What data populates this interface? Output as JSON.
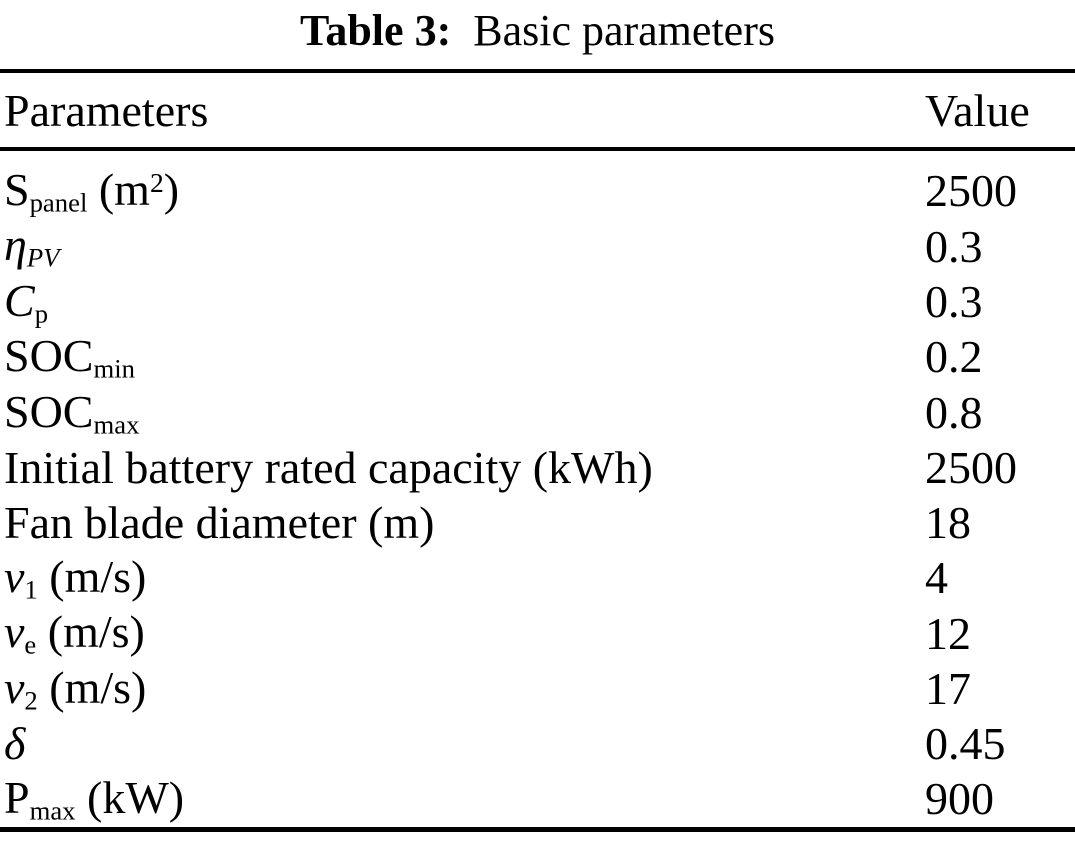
{
  "caption": {
    "label": "Table 3:",
    "text": "Basic parameters"
  },
  "header": {
    "parameters": "Parameters",
    "value": "Value"
  },
  "rows": [
    {
      "name": "S_panel (m^2)",
      "segments": [
        {
          "t": "S"
        },
        {
          "t": "panel",
          "s": "sub"
        },
        {
          "t": " (m"
        },
        {
          "t": "2",
          "s": "sup"
        },
        {
          "t": ")"
        }
      ],
      "value": "2500"
    },
    {
      "name": "eta_PV",
      "segments": [
        {
          "t": "η",
          "s": "it"
        },
        {
          "t": "PV",
          "s": "subit"
        }
      ],
      "value": "0.3"
    },
    {
      "name": "C_p",
      "segments": [
        {
          "t": "C",
          "s": "it"
        },
        {
          "t": "p",
          "s": "sub"
        }
      ],
      "value": "0.3"
    },
    {
      "name": "SOC_min",
      "segments": [
        {
          "t": "SOC"
        },
        {
          "t": "min",
          "s": "sub"
        }
      ],
      "value": "0.2"
    },
    {
      "name": "SOC_max",
      "segments": [
        {
          "t": "SOC"
        },
        {
          "t": "max",
          "s": "sub"
        }
      ],
      "value": "0.8"
    },
    {
      "name": "Initial battery rated capacity (kWh)",
      "segments": [
        {
          "t": "Initial battery rated capacity (kWh)"
        }
      ],
      "value": "2500"
    },
    {
      "name": "Fan blade diameter (m)",
      "segments": [
        {
          "t": "Fan blade diameter (m)"
        }
      ],
      "value": "18"
    },
    {
      "name": "v_1 (m/s)",
      "segments": [
        {
          "t": "v",
          "s": "it"
        },
        {
          "t": "1",
          "s": "sub"
        },
        {
          "t": " (m/s)"
        }
      ],
      "value": "4"
    },
    {
      "name": "v_e (m/s)",
      "segments": [
        {
          "t": "v",
          "s": "it"
        },
        {
          "t": "e",
          "s": "sub"
        },
        {
          "t": " (m/s)"
        }
      ],
      "value": "12"
    },
    {
      "name": "v_2 (m/s)",
      "segments": [
        {
          "t": "v",
          "s": "it"
        },
        {
          "t": "2",
          "s": "sub"
        },
        {
          "t": " (m/s)"
        }
      ],
      "value": "17"
    },
    {
      "name": "delta",
      "segments": [
        {
          "t": "δ",
          "s": "it"
        }
      ],
      "value": "0.45"
    },
    {
      "name": "P_max (kW)",
      "segments": [
        {
          "t": "P"
        },
        {
          "t": "max",
          "s": "sub"
        },
        {
          "t": " (kW)"
        }
      ],
      "value": "900"
    }
  ],
  "colors": {
    "text": "#000000",
    "background": "#ffffff",
    "rule": "#000000"
  }
}
